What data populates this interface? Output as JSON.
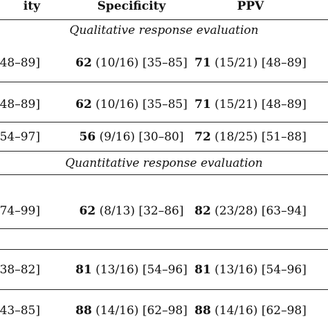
{
  "header": {
    "sensitivity_fragment": "ity",
    "specificity": "Specificity",
    "ppv": "PPV"
  },
  "sections": {
    "qualitative": "Qualitative response evaluation",
    "quantitative": "Quantitative response evaluation"
  },
  "rows": [
    {
      "sens_fragment": "48–89]",
      "spec_bold": "62",
      "spec_rest": " (10/16) [35–85]",
      "ppv_bold": "71",
      "ppv_rest": " (15/21) [48–89]"
    },
    {
      "sens_fragment": "48–89]",
      "spec_bold": "62",
      "spec_rest": " (10/16) [35–85]",
      "ppv_bold": "71",
      "ppv_rest": " (15/21) [48–89]"
    },
    {
      "sens_fragment": "54–97]",
      "spec_bold": "56",
      "spec_rest": " (9/16) [30–80]",
      "ppv_bold": "72",
      "ppv_rest": " (18/25) [51–88]"
    },
    {
      "sens_fragment": "74–99]",
      "spec_bold": "62",
      "spec_rest": " (8/13) [32–86]",
      "ppv_bold": "82",
      "ppv_rest": " (23/28) [63–94]"
    },
    {
      "sens_fragment": "38–82]",
      "spec_bold": "81",
      "spec_rest": " (13/16) [54–96]",
      "ppv_bold": "81",
      "ppv_rest": " (13/16) [54–96]"
    },
    {
      "sens_fragment": "43–85]",
      "spec_bold": "88",
      "spec_rest": " (14/16) [62–98]",
      "ppv_bold": "88",
      "ppv_rest": " (14/16) [62–98]"
    }
  ]
}
